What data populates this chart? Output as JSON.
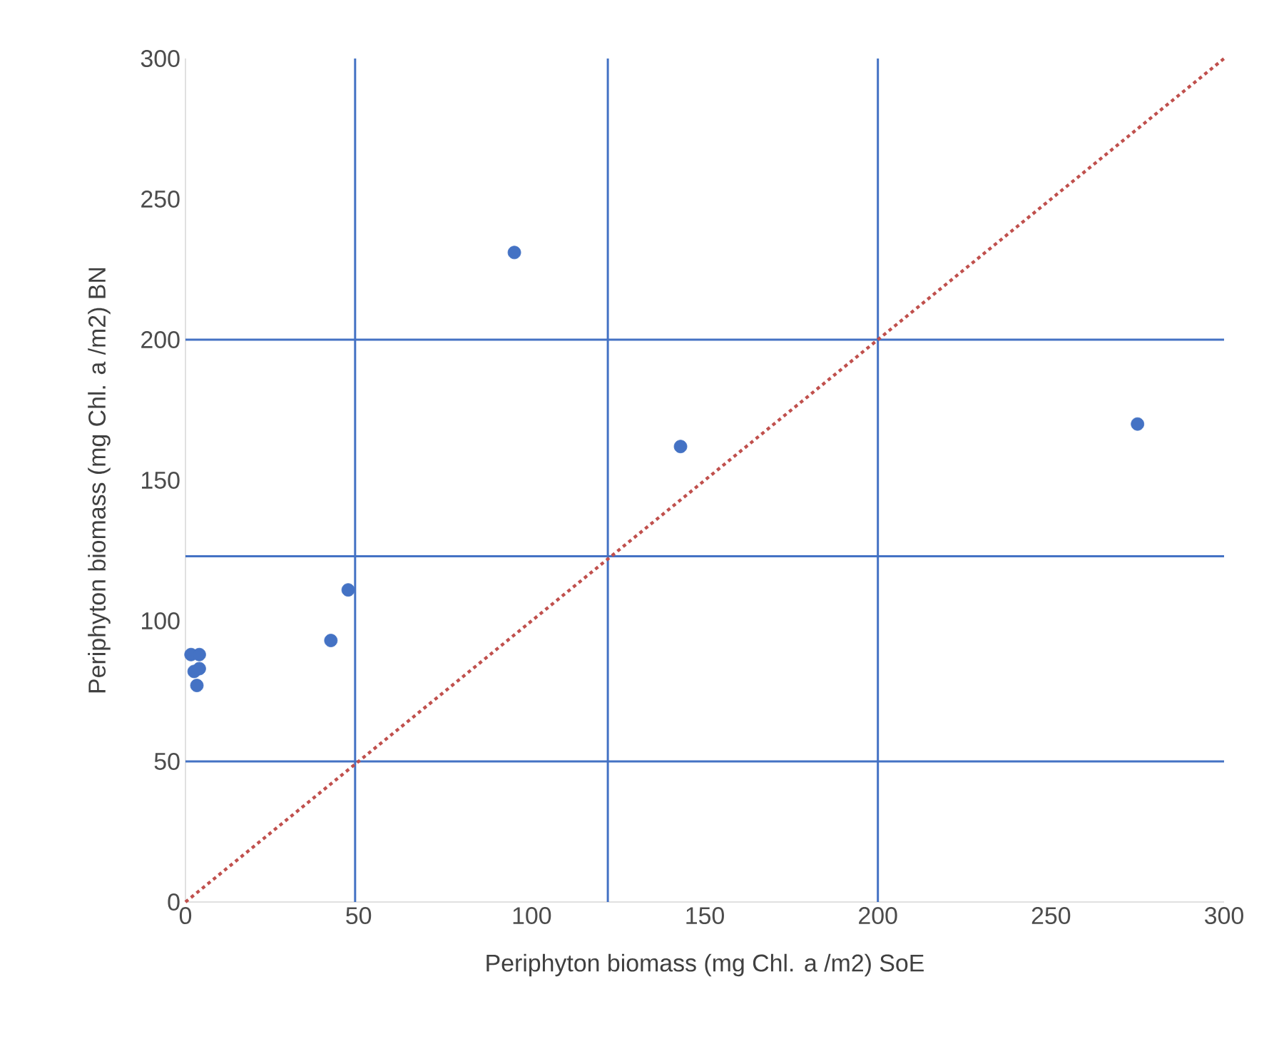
{
  "chart_data": {
    "type": "scatter",
    "xlabel": "Periphyton biomass (mg Chl. a /m2) SoE",
    "ylabel": "Periphyton biomass (mg Chl. a /m2) BN",
    "xlim": [
      0,
      300
    ],
    "ylim": [
      0,
      300
    ],
    "xticks": [
      0,
      50,
      100,
      150,
      200,
      250,
      300
    ],
    "yticks": [
      0,
      50,
      100,
      150,
      200,
      250,
      300
    ],
    "grid": false,
    "series": [
      {
        "marker": "circle",
        "color": "#4472c4",
        "x": [
          1.6,
          4,
          2.5,
          4,
          3.3,
          42,
          47,
          95,
          143,
          275
        ],
        "values": [
          88,
          88,
          82,
          83,
          77,
          93,
          111,
          231,
          162,
          170
        ]
      },
      {
        "type": "line",
        "marker": "none",
        "line_style": "dotted",
        "color": "#c0504d",
        "x": [
          0,
          300
        ],
        "values": [
          0,
          300
        ]
      }
    ],
    "ref_lines": [
      {
        "axis": "x",
        "value": 49,
        "color": "#4472c4"
      },
      {
        "axis": "x",
        "value": 122,
        "color": "#4472c4"
      },
      {
        "axis": "x",
        "value": 200,
        "color": "#4472c4"
      },
      {
        "axis": "y",
        "value": 50,
        "color": "#4472c4"
      },
      {
        "axis": "y",
        "value": 123,
        "color": "#4472c4"
      },
      {
        "axis": "y",
        "value": 200,
        "color": "#4472c4"
      }
    ]
  }
}
